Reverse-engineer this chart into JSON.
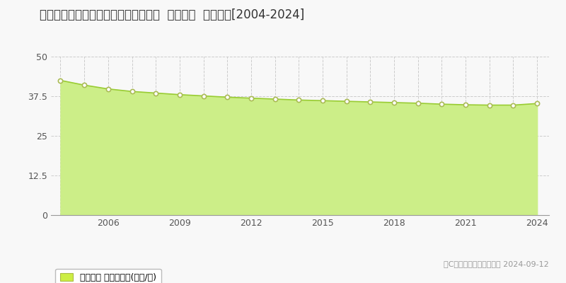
{
  "title": "愛知県知多市にしの台４丁目７番３外  地価公示  地価推移[2004-2024]",
  "years": [
    2004,
    2005,
    2006,
    2007,
    2008,
    2009,
    2010,
    2011,
    2012,
    2013,
    2014,
    2015,
    2016,
    2017,
    2018,
    2019,
    2020,
    2021,
    2022,
    2023,
    2024
  ],
  "values": [
    42.5,
    41.0,
    39.8,
    39.0,
    38.5,
    38.0,
    37.6,
    37.2,
    36.9,
    36.6,
    36.3,
    36.1,
    35.9,
    35.7,
    35.5,
    35.3,
    35.0,
    34.8,
    34.7,
    34.7,
    35.2
  ],
  "line_color": "#99cc33",
  "fill_color": "#ccee88",
  "marker_face_color": "#ffffff",
  "marker_edge_color": "#aabb55",
  "background_color": "#f8f8f8",
  "plot_bg_color": "#f8f8f8",
  "grid_color": "#cccccc",
  "ylim": [
    0,
    50
  ],
  "yticks": [
    0,
    12.5,
    25,
    37.5,
    50
  ],
  "ytick_labels": [
    "0",
    "12.5",
    "25",
    "37.5",
    "50"
  ],
  "xlim_start": 2003.6,
  "xlim_end": 2024.5,
  "legend_label": "地価公示 平均坊単価(万円/坊)",
  "legend_color": "#ccee44",
  "copyright_text": "（C）土地価格ドットコム 2024-09-12",
  "xticks": [
    2006,
    2009,
    2012,
    2015,
    2018,
    2021,
    2024
  ],
  "title_fontsize": 12,
  "tick_fontsize": 9,
  "legend_fontsize": 9
}
